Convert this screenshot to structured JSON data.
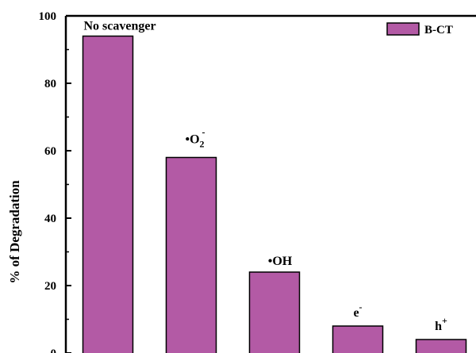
{
  "chart_data": {
    "type": "bar",
    "categories": [
      "No scavenger",
      "•O2−",
      "•OH",
      "e−",
      "h+"
    ],
    "series": [
      {
        "name": "B-CT",
        "values": [
          94,
          58,
          24,
          8,
          4
        ]
      }
    ],
    "bar_labels": [
      {
        "base": "No scavenger",
        "sub": "",
        "sup": ""
      },
      {
        "base": "•O",
        "sub": "2",
        "sup": "-"
      },
      {
        "base": "•OH",
        "sub": "",
        "sup": ""
      },
      {
        "base": "e",
        "sub": "",
        "sup": "-"
      },
      {
        "base": "h",
        "sub": "",
        "sup": "+"
      }
    ],
    "ylabel": "% of Degradation",
    "xlabel": "",
    "ylim": [
      0,
      100
    ],
    "yticks": [
      0,
      20,
      40,
      60,
      80,
      100
    ],
    "grid": false,
    "legend_position": "top-right",
    "colors": {
      "bar": "#b35aa5",
      "edge": "#000000"
    }
  }
}
